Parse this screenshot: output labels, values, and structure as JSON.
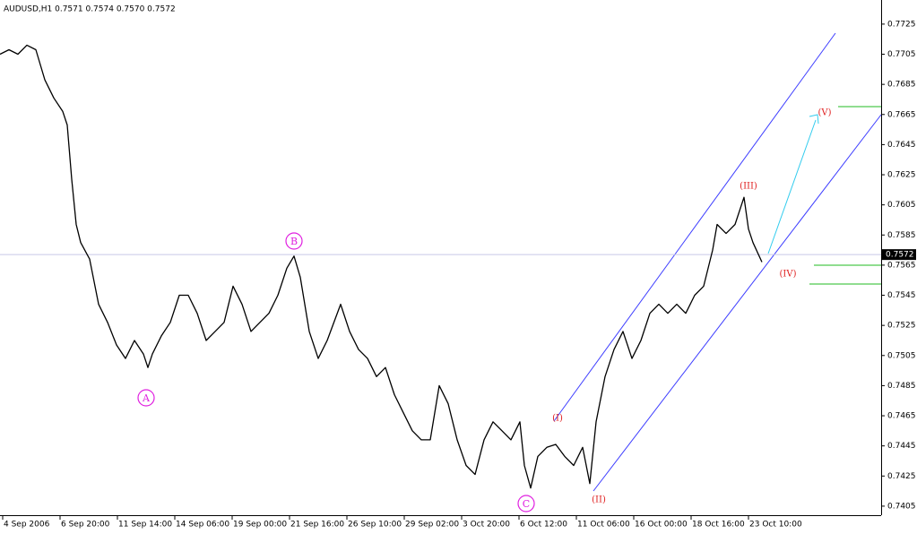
{
  "chart_data": {
    "type": "line",
    "title": "AUDUSD,H1  0.7571 0.7574 0.7570 0.7572",
    "x": [
      0,
      10,
      20,
      30,
      40,
      50,
      60,
      70,
      75,
      80,
      85,
      90,
      100,
      110,
      120,
      130,
      140,
      150,
      160,
      165,
      170,
      180,
      190,
      200,
      210,
      220,
      230,
      240,
      250,
      260,
      270,
      280,
      290,
      300,
      310,
      320,
      328,
      335,
      345,
      355,
      365,
      380,
      390,
      400,
      410,
      420,
      430,
      440,
      450,
      460,
      470,
      480,
      490,
      500,
      510,
      520,
      530,
      540,
      550,
      560,
      570,
      580,
      585,
      592,
      600,
      610,
      620,
      630,
      640,
      650,
      658,
      665,
      675,
      685,
      695,
      705,
      715,
      725,
      735,
      745,
      755,
      765,
      775,
      785,
      795,
      800,
      810,
      820,
      830,
      835,
      840,
      850
    ],
    "series": [
      {
        "name": "AUDUSD",
        "color": "#000000",
        "values": [
          0.7705,
          0.7708,
          0.7705,
          0.7711,
          0.7708,
          0.7688,
          0.7676,
          0.7667,
          0.7658,
          0.7622,
          0.7592,
          0.758,
          0.7569,
          0.7539,
          0.7527,
          0.7512,
          0.7503,
          0.7515,
          0.7506,
          0.7497,
          0.7506,
          0.7518,
          0.7527,
          0.7545,
          0.7545,
          0.7533,
          0.7515,
          0.7521,
          0.7527,
          0.7551,
          0.7539,
          0.7521,
          0.7527,
          0.7533,
          0.7545,
          0.7563,
          0.7571,
          0.7557,
          0.7521,
          0.7503,
          0.7515,
          0.7539,
          0.7521,
          0.7509,
          0.7503,
          0.7491,
          0.7497,
          0.7479,
          0.7467,
          0.7455,
          0.7449,
          0.7449,
          0.7485,
          0.7473,
          0.7449,
          0.7432,
          0.7426,
          0.7449,
          0.7461,
          0.7455,
          0.7449,
          0.7461,
          0.7432,
          0.7417,
          0.7438,
          0.7444,
          0.7446,
          0.7438,
          0.7432,
          0.7444,
          0.742,
          0.7461,
          0.7491,
          0.7509,
          0.7521,
          0.7503,
          0.7515,
          0.7533,
          0.7539,
          0.7533,
          0.7539,
          0.7533,
          0.7545,
          0.7551,
          0.7575,
          0.7592,
          0.7586,
          0.7592,
          0.761,
          0.7589,
          0.758,
          0.7567
        ]
      }
    ],
    "last_price": 0.7572,
    "xlim": [
      0,
      983
    ],
    "xticks": [
      {
        "value": 3,
        "label": "4 Sep 2006"
      },
      {
        "value": 67,
        "label": "6 Sep 20:00"
      },
      {
        "value": 131,
        "label": "11 Sep 14:00"
      },
      {
        "value": 195,
        "label": "14 Sep 06:00"
      },
      {
        "value": 259,
        "label": "19 Sep 00:00"
      },
      {
        "value": 323,
        "label": "21 Sep 16:00"
      },
      {
        "value": 387,
        "label": "26 Sep 10:00"
      },
      {
        "value": 451,
        "label": "29 Sep 02:00"
      },
      {
        "value": 515,
        "label": "3 Oct 20:00"
      },
      {
        "value": 579,
        "label": "6 Oct 12:00"
      },
      {
        "value": 643,
        "label": "11 Oct 06:00"
      },
      {
        "value": 707,
        "label": "16 Oct 00:00"
      },
      {
        "value": 771,
        "label": "18 Oct 16:00"
      },
      {
        "value": 835,
        "label": "23 Oct 10:00"
      }
    ],
    "ylim": [
      0.7399,
      0.7741
    ],
    "yticks": [
      0.7725,
      0.7705,
      0.7685,
      0.7665,
      0.7645,
      0.7625,
      0.7605,
      0.7585,
      0.7565,
      0.7545,
      0.7525,
      0.7505,
      0.7485,
      0.7465,
      0.7445,
      0.7425,
      0.7405
    ],
    "annotations": [
      "A",
      "B",
      "C",
      "(I)",
      "(II)",
      "(III)",
      "(IV)",
      "(V)"
    ]
  }
}
